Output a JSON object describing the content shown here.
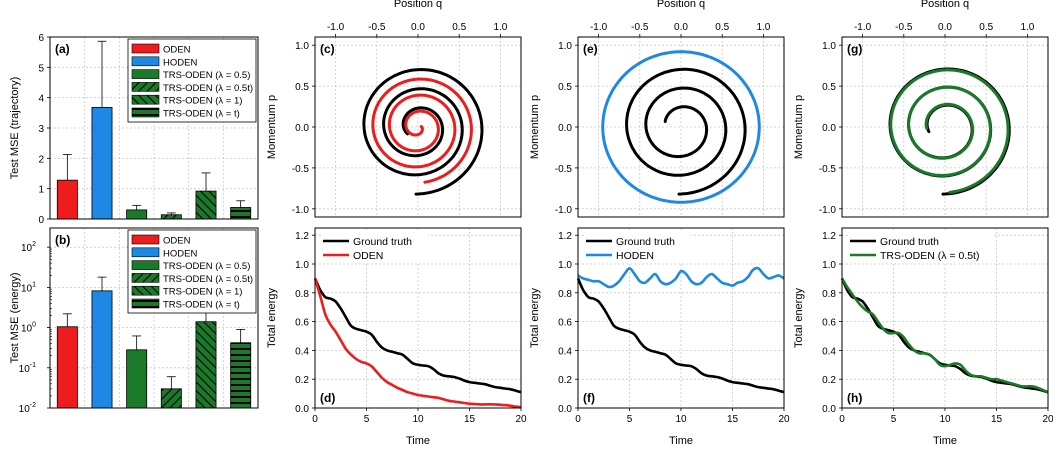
{
  "colors": {
    "oden": "#ee1c1c",
    "hoden": "#1e88e5",
    "trs": "#1a7a2a",
    "truth": "#000000",
    "grid": "#c8c8c8"
  },
  "chart_data": [
    {
      "id": "a",
      "panel_label": "(a)",
      "type": "bar",
      "ylabel": "Test MSE (trajectory)",
      "ylim": [
        0,
        6
      ],
      "yticks": [
        "0",
        "1",
        "2",
        "3",
        "4",
        "5",
        "6"
      ],
      "categories": [
        "ODEN",
        "HODEN",
        "TRS-ODEN (λ = 0.5)",
        "TRS-ODEN (λ = 0.5t)",
        "TRS-ODEN (λ = 1)",
        "TRS-ODEN (λ = t)"
      ],
      "values": [
        1.28,
        3.68,
        0.3,
        0.14,
        0.92,
        0.38
      ],
      "errors": [
        0.85,
        2.18,
        0.15,
        0.06,
        0.6,
        0.22
      ],
      "fills": [
        "red",
        "blue",
        "green",
        "green-diag-back",
        "green-diag-fwd",
        "green-horiz"
      ],
      "legend": [
        "ODEN",
        "HODEN",
        "TRS-ODEN (λ = 0.5)",
        "TRS-ODEN (λ = 0.5t)",
        "TRS-ODEN (λ = 1)",
        "TRS-ODEN (λ = t)"
      ],
      "legend_position": "top-right"
    },
    {
      "id": "b",
      "panel_label": "(b)",
      "type": "bar",
      "ylabel": "Test MSE (energy)",
      "yscale": "log",
      "ylim": [
        0.01,
        300
      ],
      "yticks": [
        "10-2",
        "10-1",
        "100",
        "101",
        "102"
      ],
      "categories": [
        "ODEN",
        "HODEN",
        "TRS-ODEN (λ = 0.5)",
        "TRS-ODEN (λ = 0.5t)",
        "TRS-ODEN (λ = 1)",
        "TRS-ODEN (λ = t)"
      ],
      "values": [
        1.05,
        8.2,
        0.28,
        0.03,
        1.4,
        0.42
      ],
      "errors_upper": [
        2.2,
        18,
        0.62,
        0.06,
        3.0,
        0.9
      ],
      "legend": [
        "ODEN",
        "HODEN",
        "TRS-ODEN (λ = 0.5)",
        "TRS-ODEN (λ = 0.5t)",
        "TRS-ODEN (λ = 1)",
        "TRS-ODEN (λ = t)"
      ],
      "legend_position": "top-right"
    },
    {
      "id": "c",
      "panel_label": "(c)",
      "type": "line",
      "xlabel": "Position q",
      "ylabel": "Momentum p",
      "xlim": [
        -1.25,
        1.25
      ],
      "ylim": [
        -1.1,
        1.1
      ],
      "xticks": [
        "-1.0",
        "-0.5",
        "0.0",
        "0.5",
        "1.0"
      ],
      "yticks": [
        "-1.0",
        "-0.5",
        "0.0",
        "0.5",
        "1.0"
      ],
      "series": [
        {
          "color": "truth",
          "spiral": {
            "r0": 0.82,
            "r1": 0.15,
            "turns": 2.85,
            "end_angle": -1.6
          }
        },
        {
          "color": "oden",
          "spiral": {
            "r0": 0.68,
            "r1": 0.04,
            "turns": 3.25,
            "end_angle": -1.45
          }
        }
      ]
    },
    {
      "id": "d",
      "panel_label": "(d)",
      "type": "line",
      "xlabel": "Time",
      "ylabel": "Total energy",
      "xlim": [
        0,
        20
      ],
      "ylim": [
        0,
        1.25
      ],
      "xticks": [
        "0",
        "5",
        "10",
        "15",
        "20"
      ],
      "yticks": [
        "0.0",
        "0.2",
        "0.4",
        "0.6",
        "0.8",
        "1.0",
        "1.2"
      ],
      "legend_position": "top-left",
      "series": [
        {
          "name": "Ground truth",
          "color": "truth",
          "x": [
            0,
            0.5,
            1,
            1.5,
            2,
            2.5,
            3,
            3.5,
            4,
            4.5,
            5,
            5.5,
            6,
            6.5,
            7,
            7.5,
            8,
            8.5,
            9,
            9.5,
            10,
            10.5,
            11,
            11.5,
            12,
            12.5,
            13,
            13.5,
            14,
            14.5,
            15,
            15.5,
            16,
            16.5,
            17,
            17.5,
            18,
            18.5,
            19,
            19.5,
            20
          ],
          "y": [
            0.9,
            0.82,
            0.77,
            0.76,
            0.74,
            0.69,
            0.63,
            0.57,
            0.55,
            0.54,
            0.53,
            0.51,
            0.46,
            0.42,
            0.4,
            0.39,
            0.38,
            0.37,
            0.34,
            0.31,
            0.3,
            0.295,
            0.29,
            0.27,
            0.24,
            0.225,
            0.22,
            0.215,
            0.205,
            0.19,
            0.18,
            0.175,
            0.17,
            0.165,
            0.155,
            0.145,
            0.14,
            0.135,
            0.13,
            0.12,
            0.11
          ]
        },
        {
          "name": "ODEN",
          "color": "oden",
          "x": [
            0,
            0.5,
            1,
            1.5,
            2,
            2.5,
            3,
            3.5,
            4,
            4.5,
            5,
            5.5,
            6,
            6.5,
            7,
            7.5,
            8,
            8.5,
            9,
            9.5,
            10,
            10.5,
            11,
            11.5,
            12,
            12.5,
            13,
            13.5,
            14,
            14.5,
            15,
            15.5,
            16,
            16.5,
            17,
            17.5,
            18,
            18.5,
            19,
            19.5,
            20
          ],
          "y": [
            0.9,
            0.78,
            0.65,
            0.58,
            0.53,
            0.47,
            0.41,
            0.37,
            0.34,
            0.32,
            0.31,
            0.29,
            0.25,
            0.21,
            0.18,
            0.16,
            0.14,
            0.125,
            0.11,
            0.1,
            0.09,
            0.085,
            0.08,
            0.075,
            0.07,
            0.06,
            0.05,
            0.045,
            0.04,
            0.035,
            0.03,
            0.028,
            0.025,
            0.025,
            0.026,
            0.025,
            0.022,
            0.02,
            0.015,
            0.01,
            0.005
          ]
        }
      ]
    },
    {
      "id": "e",
      "panel_label": "(e)",
      "type": "line",
      "xlabel": "Position q",
      "ylabel": "Momentum p",
      "xlim": [
        -1.25,
        1.25
      ],
      "ylim": [
        -1.1,
        1.1
      ],
      "xticks": [
        "-1.0",
        "-0.5",
        "0.0",
        "0.5",
        "1.0"
      ],
      "yticks": [
        "-1.0",
        "-0.5",
        "0.0",
        "0.5",
        "1.0"
      ],
      "series": [
        {
          "color": "hoden",
          "ellipse": {
            "rx": 0.95,
            "ry": 0.92
          }
        },
        {
          "color": "truth",
          "spiral": {
            "r0": 0.82,
            "r1": 0.2,
            "turns": 2.7,
            "end_angle": -1.6
          }
        }
      ]
    },
    {
      "id": "f",
      "panel_label": "(f)",
      "type": "line",
      "xlabel": "Time",
      "ylabel": "Total energy",
      "xlim": [
        0,
        20
      ],
      "ylim": [
        0,
        1.25
      ],
      "xticks": [
        "0",
        "5",
        "10",
        "15",
        "20"
      ],
      "yticks": [
        "0.0",
        "0.2",
        "0.4",
        "0.6",
        "0.8",
        "1.0",
        "1.2"
      ],
      "legend_position": "top-left",
      "series": [
        {
          "name": "Ground truth",
          "color": "truth",
          "x": [
            0,
            0.5,
            1,
            1.5,
            2,
            2.5,
            3,
            3.5,
            4,
            4.5,
            5,
            5.5,
            6,
            6.5,
            7,
            7.5,
            8,
            8.5,
            9,
            9.5,
            10,
            10.5,
            11,
            11.5,
            12,
            12.5,
            13,
            13.5,
            14,
            14.5,
            15,
            15.5,
            16,
            16.5,
            17,
            17.5,
            18,
            18.5,
            19,
            19.5,
            20
          ],
          "y": [
            0.9,
            0.82,
            0.77,
            0.76,
            0.74,
            0.69,
            0.63,
            0.57,
            0.55,
            0.54,
            0.53,
            0.51,
            0.46,
            0.42,
            0.4,
            0.39,
            0.38,
            0.37,
            0.34,
            0.31,
            0.3,
            0.295,
            0.29,
            0.27,
            0.24,
            0.225,
            0.22,
            0.215,
            0.205,
            0.19,
            0.18,
            0.175,
            0.17,
            0.165,
            0.155,
            0.145,
            0.14,
            0.135,
            0.13,
            0.12,
            0.11
          ]
        },
        {
          "name": "HODEN",
          "color": "hoden",
          "x": [
            0,
            0.5,
            1,
            1.5,
            2,
            2.5,
            3,
            3.5,
            4,
            4.5,
            5,
            5.5,
            6,
            6.5,
            7,
            7.5,
            8,
            8.5,
            9,
            9.5,
            10,
            10.5,
            11,
            11.5,
            12,
            12.5,
            13,
            13.5,
            14,
            14.5,
            15,
            15.5,
            16,
            16.5,
            17,
            17.5,
            18,
            18.5,
            19,
            19.5,
            20
          ],
          "y": [
            0.92,
            0.9,
            0.89,
            0.88,
            0.88,
            0.86,
            0.84,
            0.85,
            0.88,
            0.93,
            0.97,
            0.93,
            0.88,
            0.87,
            0.9,
            0.93,
            0.88,
            0.86,
            0.87,
            0.9,
            0.95,
            0.93,
            0.88,
            0.86,
            0.87,
            0.91,
            0.93,
            0.9,
            0.87,
            0.86,
            0.85,
            0.87,
            0.88,
            0.91,
            0.96,
            0.97,
            0.93,
            0.9,
            0.91,
            0.92,
            0.9
          ]
        }
      ]
    },
    {
      "id": "g",
      "panel_label": "(g)",
      "type": "line",
      "xlabel": "Position q",
      "ylabel": "Momentum p",
      "xlim": [
        -1.25,
        1.25
      ],
      "ylim": [
        -1.1,
        1.1
      ],
      "xticks": [
        "-1.0",
        "-0.5",
        "0.0",
        "0.5",
        "1.0"
      ],
      "yticks": [
        "-1.0",
        "-0.5",
        "0.0",
        "0.5",
        "1.0"
      ],
      "series": [
        {
          "color": "truth",
          "spiral": {
            "r0": 0.82,
            "r1": 0.2,
            "turns": 2.8,
            "end_angle": -1.6
          }
        },
        {
          "color": "trs",
          "spiral": {
            "r0": 0.8,
            "r1": 0.22,
            "turns": 2.75,
            "end_angle": -1.5
          }
        }
      ]
    },
    {
      "id": "h",
      "panel_label": "(h)",
      "type": "line",
      "xlabel": "Time",
      "ylabel": "Total energy",
      "xlim": [
        0,
        20
      ],
      "ylim": [
        0,
        1.25
      ],
      "xticks": [
        "0",
        "5",
        "10",
        "15",
        "20"
      ],
      "yticks": [
        "0.0",
        "0.2",
        "0.4",
        "0.6",
        "0.8",
        "1.0",
        "1.2"
      ],
      "legend_position": "top-left",
      "series": [
        {
          "name": "Ground truth",
          "color": "truth",
          "x": [
            0,
            0.5,
            1,
            1.5,
            2,
            2.5,
            3,
            3.5,
            4,
            4.5,
            5,
            5.5,
            6,
            6.5,
            7,
            7.5,
            8,
            8.5,
            9,
            9.5,
            10,
            10.5,
            11,
            11.5,
            12,
            12.5,
            13,
            13.5,
            14,
            14.5,
            15,
            15.5,
            16,
            16.5,
            17,
            17.5,
            18,
            18.5,
            19,
            19.5,
            20
          ],
          "y": [
            0.9,
            0.82,
            0.77,
            0.76,
            0.74,
            0.69,
            0.63,
            0.57,
            0.55,
            0.54,
            0.53,
            0.51,
            0.46,
            0.42,
            0.4,
            0.39,
            0.38,
            0.37,
            0.34,
            0.31,
            0.3,
            0.295,
            0.29,
            0.27,
            0.24,
            0.225,
            0.22,
            0.215,
            0.205,
            0.19,
            0.18,
            0.175,
            0.17,
            0.165,
            0.155,
            0.145,
            0.14,
            0.135,
            0.13,
            0.12,
            0.11
          ]
        },
        {
          "name": "TRS-ODEN (λ = 0.5t)",
          "color": "trs",
          "x": [
            0,
            0.5,
            1,
            1.5,
            2,
            2.5,
            3,
            3.5,
            4,
            4.5,
            5,
            5.5,
            6,
            6.5,
            7,
            7.5,
            8,
            8.5,
            9,
            9.5,
            10,
            10.5,
            11,
            11.5,
            12,
            12.5,
            13,
            13.5,
            14,
            14.5,
            15,
            15.5,
            16,
            16.5,
            17,
            17.5,
            18,
            18.5,
            19,
            19.5,
            20
          ],
          "y": [
            0.9,
            0.84,
            0.79,
            0.74,
            0.7,
            0.67,
            0.65,
            0.6,
            0.55,
            0.52,
            0.52,
            0.52,
            0.49,
            0.44,
            0.4,
            0.38,
            0.38,
            0.37,
            0.34,
            0.3,
            0.29,
            0.3,
            0.31,
            0.3,
            0.26,
            0.23,
            0.22,
            0.22,
            0.21,
            0.2,
            0.2,
            0.19,
            0.18,
            0.17,
            0.16,
            0.15,
            0.15,
            0.15,
            0.14,
            0.125,
            0.11
          ]
        }
      ]
    }
  ]
}
